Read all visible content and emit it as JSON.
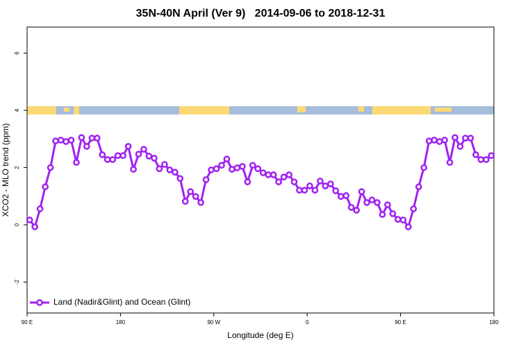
{
  "chart_data": {
    "type": "line",
    "title": "35N-40N April (Ver 9)   2014-09-06 to 2018-12-31",
    "xlabel": "Longitude (deg E)",
    "ylabel": "XCO2 - MLO trend (ppm)",
    "xlim": [
      90,
      540
    ],
    "ylim": [
      -3.08,
      6.91
    ],
    "xticks": [
      {
        "value": 90,
        "label": "90 E"
      },
      180,
      {
        "value": 270,
        "label": "90 W"
      },
      {
        "value": 360,
        "label": "0"
      },
      {
        "value": 450,
        "label": "90 E"
      },
      {
        "value": 540,
        "label": "180"
      }
    ],
    "yticks": [
      -2,
      0,
      2,
      4,
      6
    ],
    "legend": "bottomleft",
    "x": [
      92.5,
      97.5,
      102.5,
      107.5,
      112.5,
      117.5,
      122.5,
      127.5,
      132.5,
      137.5,
      142.5,
      147.5,
      152.5,
      157.5,
      162.5,
      167.5,
      172.5,
      177.5,
      182.5,
      187.5,
      192.5,
      197.5,
      202.5,
      207.5,
      212.5,
      217.5,
      222.5,
      227.5,
      232.5,
      237.5,
      242.5,
      247.5,
      252.5,
      257.5,
      262.5,
      267.5,
      272.5,
      277.5,
      282.5,
      287.5,
      292.5,
      297.5,
      302.5,
      307.5,
      312.5,
      317.5,
      322.5,
      327.5,
      332.5,
      337.5,
      342.5,
      347.5,
      352.5,
      357.5,
      362.5,
      367.5,
      372.5,
      377.5,
      382.5,
      387.5,
      392.5,
      397.5,
      402.5,
      407.5,
      412.5,
      417.5,
      422.5,
      427.5,
      432.5,
      437.5,
      442.5,
      447.5,
      452.5,
      457.5,
      462.5,
      467.5,
      472.5,
      477.5,
      482.5,
      487.5,
      492.5,
      497.5,
      502.5,
      507.5,
      512.5,
      517.5,
      522.5,
      527.5,
      532.5,
      537.5
    ],
    "series": [
      {
        "name": "Land (Nadir&Glint) and Ocean (Glint)",
        "color": "#a020f0",
        "values": [
          0.17,
          -0.07,
          0.56,
          1.33,
          2.0,
          2.93,
          2.96,
          2.91,
          2.96,
          2.18,
          3.05,
          2.74,
          3.03,
          3.03,
          2.45,
          2.28,
          2.28,
          2.42,
          2.42,
          2.74,
          1.94,
          2.47,
          2.64,
          2.4,
          2.33,
          1.96,
          2.11,
          1.92,
          1.84,
          1.62,
          0.82,
          1.16,
          0.99,
          0.78,
          1.58,
          1.92,
          1.96,
          2.08,
          2.3,
          1.94,
          1.99,
          2.04,
          1.5,
          2.08,
          1.96,
          1.82,
          1.75,
          1.75,
          1.5,
          1.67,
          1.75,
          1.5,
          1.21,
          1.21,
          1.36,
          1.21,
          1.53,
          1.36,
          1.43,
          1.19,
          0.99,
          1.02,
          0.61,
          0.51,
          1.16,
          0.78,
          0.87,
          0.78,
          0.36,
          0.7,
          0.39,
          0.19,
          0.17,
          -0.07,
          0.56,
          1.33,
          2.0,
          2.93,
          2.96,
          2.91,
          2.96,
          2.18,
          3.05,
          2.74,
          3.03,
          3.03,
          2.45,
          2.28,
          2.28,
          2.42
        ]
      }
    ]
  }
}
